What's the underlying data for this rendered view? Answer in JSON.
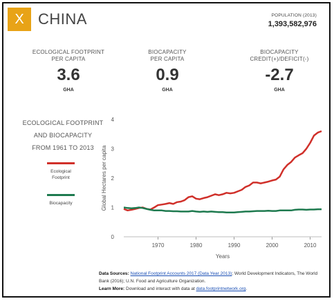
{
  "header": {
    "close_label": "X",
    "country": "CHINA",
    "population_label": "POPULATION (2013)",
    "population_value": "1,393,582,976"
  },
  "metrics": [
    {
      "label_line1": "ECOLOGICAL FOOTPRINT",
      "label_line2": "PER CAPITA",
      "value": "3.6",
      "unit": "GHA"
    },
    {
      "label_line1": "BIOCAPACITY",
      "label_line2": "PER CAPITA",
      "value": "0.9",
      "unit": "GHA"
    },
    {
      "label_line1": "BIOCAPACITY",
      "label_line2": "CREDIT(+)/DEFICIT(-)",
      "value": "-2.7",
      "unit": "GHA"
    }
  ],
  "chart_section": {
    "title_line1": "ECOLOGICAL FOOTPRINT",
    "title_line2": "AND BIOCAPACITY",
    "title_line3": "FROM 1961 TO 2013",
    "legend": [
      {
        "label_line1": "Ecological",
        "label_line2": "Footprint",
        "color": "#d0302a"
      },
      {
        "label_line1": "Biocapacity",
        "label_line2": "",
        "color": "#1e7a4f"
      }
    ]
  },
  "chart_data": {
    "type": "line",
    "xlabel": "Years",
    "ylabel": "Global Hectares per capita",
    "xlim": [
      1961,
      2013
    ],
    "ylim": [
      0,
      4
    ],
    "xticks": [
      1970,
      1980,
      1990,
      2000,
      2010
    ],
    "yticks": [
      0,
      1,
      2,
      3,
      4
    ],
    "grid": false,
    "series": [
      {
        "name": "Ecological Footprint",
        "color": "#d0302a",
        "x": [
          1961,
          1962,
          1963,
          1964,
          1965,
          1966,
          1967,
          1968,
          1969,
          1970,
          1971,
          1972,
          1973,
          1974,
          1975,
          1976,
          1977,
          1978,
          1979,
          1980,
          1981,
          1982,
          1983,
          1984,
          1985,
          1986,
          1987,
          1988,
          1989,
          1990,
          1991,
          1992,
          1993,
          1994,
          1995,
          1996,
          1997,
          1998,
          1999,
          2000,
          2001,
          2002,
          2003,
          2004,
          2005,
          2006,
          2007,
          2008,
          2009,
          2010,
          2011,
          2012,
          2013
        ],
        "values": [
          0.95,
          0.9,
          0.92,
          0.95,
          0.98,
          1.0,
          0.95,
          0.93,
          1.0,
          1.08,
          1.1,
          1.12,
          1.15,
          1.12,
          1.18,
          1.2,
          1.25,
          1.35,
          1.38,
          1.3,
          1.28,
          1.32,
          1.35,
          1.4,
          1.45,
          1.42,
          1.45,
          1.5,
          1.48,
          1.5,
          1.55,
          1.6,
          1.7,
          1.75,
          1.85,
          1.85,
          1.82,
          1.85,
          1.88,
          1.92,
          1.95,
          2.05,
          2.3,
          2.45,
          2.55,
          2.7,
          2.78,
          2.85,
          3.0,
          3.2,
          3.45,
          3.55,
          3.6
        ]
      },
      {
        "name": "Biocapacity",
        "color": "#1e7a4f",
        "x": [
          1961,
          1962,
          1963,
          1964,
          1965,
          1966,
          1967,
          1968,
          1969,
          1970,
          1971,
          1972,
          1973,
          1974,
          1975,
          1976,
          1977,
          1978,
          1979,
          1980,
          1981,
          1982,
          1983,
          1984,
          1985,
          1986,
          1987,
          1988,
          1989,
          1990,
          1991,
          1992,
          1993,
          1994,
          1995,
          1996,
          1997,
          1998,
          1999,
          2000,
          2001,
          2002,
          2003,
          2004,
          2005,
          2006,
          2007,
          2008,
          2009,
          2010,
          2011,
          2012,
          2013
        ],
        "values": [
          1.0,
          0.98,
          0.97,
          0.98,
          1.0,
          0.98,
          0.95,
          0.92,
          0.9,
          0.9,
          0.9,
          0.88,
          0.88,
          0.87,
          0.87,
          0.86,
          0.86,
          0.86,
          0.88,
          0.86,
          0.85,
          0.86,
          0.85,
          0.86,
          0.85,
          0.84,
          0.84,
          0.83,
          0.83,
          0.83,
          0.84,
          0.85,
          0.86,
          0.86,
          0.87,
          0.88,
          0.88,
          0.88,
          0.89,
          0.88,
          0.88,
          0.9,
          0.9,
          0.9,
          0.9,
          0.92,
          0.93,
          0.93,
          0.92,
          0.93,
          0.93,
          0.94,
          0.94
        ]
      }
    ]
  },
  "footer": {
    "sources_label": "Data Sources:",
    "sources_link": "National Footprint Accounts 2017 (Data Year 2013)",
    "sources_text": "; World Development Indicators, The World Bank (2016); U.N. Food and Agriculture Organization.",
    "learn_label": "Learn More:",
    "learn_text": "Download and interact with data at",
    "learn_link": "data.footprintnetwork.org",
    "learn_end": "."
  }
}
